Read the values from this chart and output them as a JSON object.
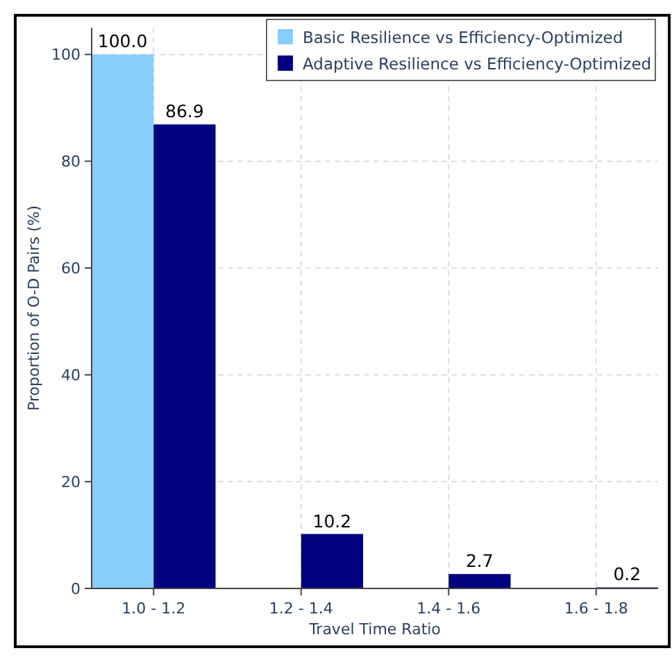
{
  "chart_data": {
    "type": "bar",
    "xlabel": "Travel Time Ratio",
    "ylabel": "Proportion of O-D Pairs (%)",
    "categories": [
      "1.0 - 1.2",
      "1.2 - 1.4",
      "1.4 - 1.6",
      "1.6 - 1.8"
    ],
    "series": [
      {
        "name": "Basic Resilience vs Efficiency-Optimized",
        "color": "#87cefa",
        "values": [
          100,
          0,
          0,
          0
        ],
        "value_labels": [
          "100.0",
          null,
          null,
          null
        ]
      },
      {
        "name": "Adaptive Resilience vs Efficiency-Optimized",
        "color": "#000080",
        "values": [
          86.9,
          10.2,
          2.7,
          0.2
        ],
        "value_labels": [
          "86.9",
          "10.2",
          "2.7",
          "0.2"
        ]
      }
    ],
    "ylim": [
      0,
      105
    ],
    "yticks": [
      0,
      20,
      40,
      60,
      80,
      100
    ],
    "grid": true,
    "legend": "top right"
  }
}
